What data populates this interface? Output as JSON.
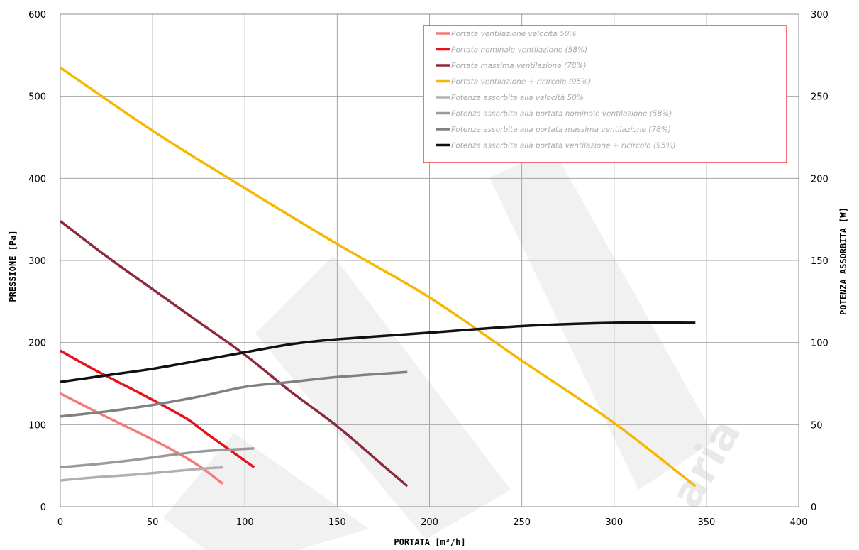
{
  "chart_data": {
    "type": "line",
    "xlabel": "PORTATA [m³/h]",
    "ylabel": "PRESSIONE [Pa]",
    "y2label": "POTENZA ASSORBITA [W]",
    "xlim": [
      0,
      400
    ],
    "ylim": [
      0,
      600
    ],
    "y2lim": [
      0,
      300
    ],
    "x_ticks": [
      0,
      50,
      100,
      150,
      200,
      250,
      300,
      350,
      400
    ],
    "y_ticks": [
      0,
      100,
      200,
      300,
      400,
      500,
      600
    ],
    "y2_ticks": [
      0,
      50,
      100,
      150,
      200,
      250,
      300
    ],
    "grid": true,
    "legend_position": "top-right",
    "watermark_text": "aria",
    "series": [
      {
        "name": "Portata ventilazione velocità 50%",
        "axis": "left",
        "color": "#f47a7a",
        "x": [
          0,
          20,
          40,
          60,
          75,
          88
        ],
        "y": [
          138,
          115,
          93,
          70,
          50,
          28
        ]
      },
      {
        "name": "Portata nominale ventilazione (58%)",
        "axis": "left",
        "color": "#e8101b",
        "x": [
          0,
          20,
          40,
          60,
          70,
          80,
          90,
          105
        ],
        "y": [
          190,
          165,
          142,
          118,
          105,
          88,
          72,
          48
        ]
      },
      {
        "name": "Portata massima ventilazione (78%)",
        "axis": "left",
        "color": "#8b2a3a",
        "x": [
          0,
          25,
          50,
          75,
          100,
          125,
          150,
          175,
          188
        ],
        "y": [
          348,
          305,
          265,
          225,
          185,
          140,
          98,
          50,
          25
        ]
      },
      {
        "name": "Portata ventilazione + ricircolo (95%)",
        "axis": "left",
        "color": "#f5b800",
        "x": [
          0,
          50,
          100,
          150,
          200,
          250,
          300,
          344
        ],
        "y": [
          535,
          458,
          388,
          320,
          255,
          178,
          102,
          25
        ]
      },
      {
        "name": "Potenza assorbita alla velocità 50%",
        "axis": "right",
        "color": "#b0b0b0",
        "x": [
          0,
          20,
          40,
          60,
          75,
          88
        ],
        "y": [
          16,
          18,
          19.5,
          21.5,
          23,
          24
        ]
      },
      {
        "name": "Potenza assorbita alla portata nominale ventilazione (58%)",
        "axis": "right",
        "color": "#9a9a9a",
        "x": [
          0,
          20,
          40,
          60,
          80,
          105
        ],
        "y": [
          24,
          26,
          28.5,
          31.5,
          34,
          35.5
        ]
      },
      {
        "name": "Potenza assorbita alla portata massima ventilazione (78%)",
        "axis": "right",
        "color": "#808080",
        "x": [
          0,
          25,
          50,
          75,
          100,
          125,
          150,
          188
        ],
        "y": [
          55,
          58,
          62,
          67,
          73,
          76,
          79,
          82
        ]
      },
      {
        "name": "Potenza assorbita alla portata ventilazione + ricircolo (95%)",
        "axis": "right",
        "color": "#111111",
        "x": [
          0,
          25,
          50,
          75,
          100,
          125,
          150,
          200,
          250,
          300,
          344
        ],
        "y": [
          76,
          80,
          84,
          89,
          94,
          99,
          102,
          106,
          110,
          112,
          112
        ]
      }
    ]
  }
}
